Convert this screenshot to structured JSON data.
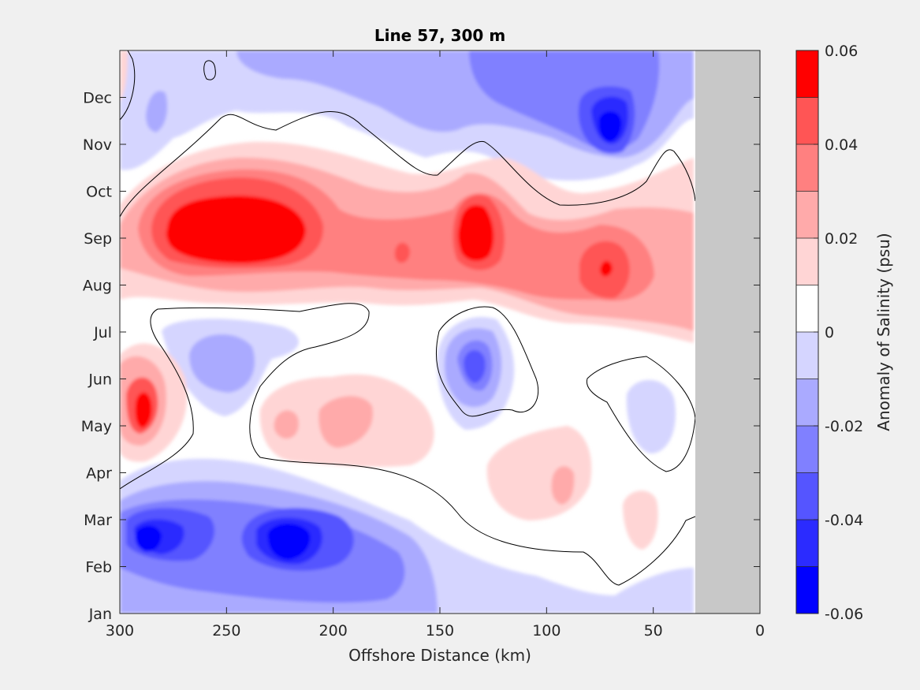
{
  "chart_data": {
    "type": "heatmap",
    "title": "Line 57, 300 m",
    "xlabel": "Offshore Distance (km)",
    "ylabel": "",
    "x_ticks": [
      300,
      250,
      200,
      150,
      100,
      50,
      0
    ],
    "x_reversed": true,
    "xlim": [
      0,
      300
    ],
    "y_ticks": [
      "Jan",
      "Feb",
      "Mar",
      "Apr",
      "May",
      "Jun",
      "Jul",
      "Aug",
      "Sep",
      "Oct",
      "Nov",
      "Dec"
    ],
    "no_data_region_km": [
      0,
      30
    ],
    "colorbar": {
      "label": "Anomaly of Salinity (psu)",
      "range": [
        -0.06,
        0.06
      ],
      "tick_labels": [
        "0.06",
        "0.04",
        "0.02",
        "0",
        "-0.02",
        "-0.04",
        "-0.06"
      ],
      "levels": [
        -0.06,
        -0.05,
        -0.04,
        -0.03,
        -0.02,
        -0.01,
        0,
        0.01,
        0.02,
        0.03,
        0.04,
        0.05,
        0.06
      ],
      "colors_low_to_high": [
        "#0000ff",
        "#2b2bff",
        "#5555ff",
        "#8080ff",
        "#aaaaff",
        "#d5d5ff",
        "#ffffff",
        "#ffffff",
        "#ffd5d5",
        "#ffaaaa",
        "#ff8080",
        "#ff5555",
        "#ff0000"
      ]
    },
    "features": [
      {
        "x_km": 245,
        "month": "Sep",
        "anomaly": 0.06
      },
      {
        "x_km": 133,
        "month": "Sep",
        "anomaly": 0.06
      },
      {
        "x_km": 70,
        "month": "Aug",
        "anomaly": 0.05
      },
      {
        "x_km": 288,
        "month": "May",
        "anomaly": 0.06
      },
      {
        "x_km": 222,
        "month": "Feb",
        "anomaly": -0.06
      },
      {
        "x_km": 285,
        "month": "Mar",
        "anomaly": -0.05
      },
      {
        "x_km": 70,
        "month": "Nov",
        "anomaly": -0.06
      },
      {
        "x_km": 133,
        "month": "Jun",
        "anomaly": -0.04
      },
      {
        "x_km": 245,
        "month": "Jun",
        "anomaly": -0.03
      },
      {
        "x_km": 45,
        "month": "May",
        "anomaly": -0.02
      },
      {
        "x_km": 190,
        "month": "May",
        "anomaly": 0.03
      },
      {
        "x_km": 95,
        "month": "Apr",
        "anomaly": 0.03
      },
      {
        "x_km": 50,
        "month": "Mar",
        "anomaly": 0.02
      }
    ]
  }
}
